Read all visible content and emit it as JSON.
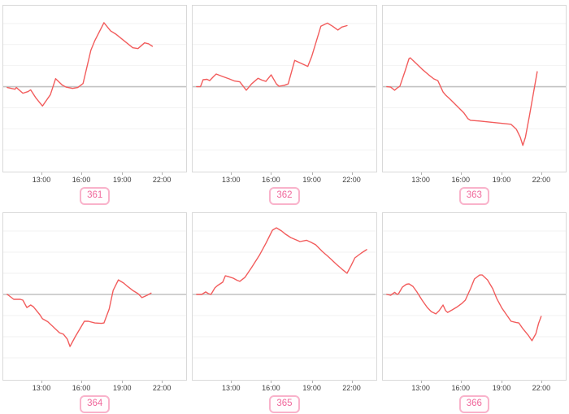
{
  "page": {
    "background": "#ffffff"
  },
  "colors": {
    "line": "#f25c5c",
    "zero_line": "#c2c2c2",
    "gridline": "#f2f2f2",
    "plot_border": "#d9d9d9",
    "badge_border": "#f9b3cb",
    "badge_text": "#f0679b",
    "tick_label": "#404040"
  },
  "chart_data": [
    {
      "type": "line",
      "badge": "361",
      "title_fragment": "· · ·",
      "xlabel": "",
      "ylabel": "",
      "x_ticks": [
        "13:00",
        "16:00",
        "19:00",
        "22:00"
      ],
      "x_range_hours": [
        10,
        24
      ],
      "y_note": "y axis unlabeled; values in gridline units, zero line shown",
      "ylim": [
        -4,
        4
      ],
      "points": [
        [
          10.3,
          -0.04
        ],
        [
          10.9,
          -0.12
        ],
        [
          11.0,
          -0.04
        ],
        [
          11.5,
          -0.31
        ],
        [
          11.9,
          -0.23
        ],
        [
          12.1,
          -0.15
        ],
        [
          12.5,
          -0.54
        ],
        [
          13.0,
          -0.92
        ],
        [
          13.6,
          -0.38
        ],
        [
          14.0,
          0.38
        ],
        [
          14.5,
          0.08
        ],
        [
          14.8,
          -0.02
        ],
        [
          15.3,
          -0.08
        ],
        [
          15.7,
          -0.04
        ],
        [
          16.1,
          0.15
        ],
        [
          16.7,
          1.73
        ],
        [
          17.0,
          2.19
        ],
        [
          17.7,
          3.04
        ],
        [
          18.2,
          2.65
        ],
        [
          18.6,
          2.5
        ],
        [
          19.3,
          2.15
        ],
        [
          19.9,
          1.85
        ],
        [
          20.3,
          1.81
        ],
        [
          20.8,
          2.08
        ],
        [
          21.1,
          2.04
        ],
        [
          21.4,
          1.92
        ]
      ]
    },
    {
      "type": "line",
      "badge": "362",
      "title_fragment": "· · ·",
      "xlabel": "",
      "ylabel": "",
      "x_ticks": [
        "13:00",
        "16:00",
        "19:00",
        "22:00"
      ],
      "x_range_hours": [
        10,
        24
      ],
      "y_note": "y axis unlabeled; values in gridline units, zero line shown",
      "ylim": [
        -4,
        4
      ],
      "points": [
        [
          10.3,
          0
        ],
        [
          10.6,
          0
        ],
        [
          10.8,
          0.33
        ],
        [
          11.1,
          0.35
        ],
        [
          11.3,
          0.29
        ],
        [
          11.6,
          0.48
        ],
        [
          11.8,
          0.6
        ],
        [
          12.3,
          0.48
        ],
        [
          12.8,
          0.37
        ],
        [
          13.2,
          0.27
        ],
        [
          13.6,
          0.23
        ],
        [
          14.1,
          -0.17
        ],
        [
          14.5,
          0.13
        ],
        [
          15.0,
          0.4
        ],
        [
          15.3,
          0.31
        ],
        [
          15.6,
          0.25
        ],
        [
          15.7,
          0.33
        ],
        [
          16.0,
          0.56
        ],
        [
          16.4,
          0.13
        ],
        [
          16.6,
          0.02
        ],
        [
          17.0,
          0.06
        ],
        [
          17.3,
          0.13
        ],
        [
          17.8,
          1.25
        ],
        [
          18.2,
          1.13
        ],
        [
          18.8,
          0.96
        ],
        [
          19.1,
          1.44
        ],
        [
          19.8,
          2.87
        ],
        [
          20.3,
          3.02
        ],
        [
          20.7,
          2.87
        ],
        [
          21.1,
          2.69
        ],
        [
          21.4,
          2.83
        ],
        [
          21.8,
          2.9
        ]
      ]
    },
    {
      "type": "line",
      "badge": "363",
      "title_fragment": "· · ·",
      "xlabel": "",
      "ylabel": "",
      "x_ticks": [
        "13:00",
        "16:00",
        "19:00",
        "22:00"
      ],
      "x_range_hours": [
        10,
        24
      ],
      "y_note": "y axis unlabeled; values in gridline units, zero line shown",
      "ylim": [
        -4,
        4
      ],
      "points": [
        [
          10.3,
          0
        ],
        [
          10.6,
          -0.02
        ],
        [
          10.9,
          -0.17
        ],
        [
          11.1,
          -0.06
        ],
        [
          11.3,
          0.02
        ],
        [
          11.7,
          0.75
        ],
        [
          12.0,
          1.33
        ],
        [
          12.1,
          1.37
        ],
        [
          12.5,
          1.13
        ],
        [
          13.0,
          0.83
        ],
        [
          13.5,
          0.56
        ],
        [
          13.9,
          0.37
        ],
        [
          14.2,
          0.29
        ],
        [
          14.6,
          -0.25
        ],
        [
          14.8,
          -0.4
        ],
        [
          15.2,
          -0.63
        ],
        [
          15.7,
          -0.94
        ],
        [
          16.2,
          -1.25
        ],
        [
          16.5,
          -1.52
        ],
        [
          16.7,
          -1.6
        ],
        [
          17.4,
          -1.63
        ],
        [
          18.3,
          -1.69
        ],
        [
          19.2,
          -1.75
        ],
        [
          19.8,
          -1.79
        ],
        [
          20.2,
          -2.02
        ],
        [
          20.5,
          -2.4
        ],
        [
          20.7,
          -2.79
        ],
        [
          20.9,
          -2.4
        ],
        [
          21.2,
          -1.4
        ],
        [
          21.5,
          -0.33
        ],
        [
          21.8,
          0.71
        ]
      ]
    },
    {
      "type": "line",
      "badge": "364",
      "title_fragment": "· · ·",
      "xlabel": "",
      "ylabel": "",
      "x_ticks": [
        "13:00",
        "16:00",
        "19:00",
        "22:00"
      ],
      "x_range_hours": [
        10,
        24
      ],
      "y_note": "y axis unlabeled; values in gridline units, zero line shown",
      "ylim": [
        -4,
        4
      ],
      "points": [
        [
          10.3,
          0
        ],
        [
          10.4,
          -0.04
        ],
        [
          10.8,
          -0.23
        ],
        [
          11.3,
          -0.23
        ],
        [
          11.5,
          -0.27
        ],
        [
          11.8,
          -0.62
        ],
        [
          12.1,
          -0.5
        ],
        [
          12.3,
          -0.58
        ],
        [
          12.8,
          -0.96
        ],
        [
          13.0,
          -1.15
        ],
        [
          13.4,
          -1.29
        ],
        [
          13.7,
          -1.46
        ],
        [
          14.3,
          -1.81
        ],
        [
          14.6,
          -1.88
        ],
        [
          14.9,
          -2.12
        ],
        [
          15.1,
          -2.46
        ],
        [
          15.5,
          -2.0
        ],
        [
          15.9,
          -1.58
        ],
        [
          16.2,
          -1.27
        ],
        [
          16.5,
          -1.27
        ],
        [
          17.0,
          -1.35
        ],
        [
          17.5,
          -1.37
        ],
        [
          17.7,
          -1.35
        ],
        [
          18.1,
          -0.69
        ],
        [
          18.4,
          0.19
        ],
        [
          18.8,
          0.69
        ],
        [
          19.2,
          0.54
        ],
        [
          19.5,
          0.38
        ],
        [
          19.9,
          0.19
        ],
        [
          20.3,
          0.04
        ],
        [
          20.6,
          -0.15
        ],
        [
          21.0,
          -0.04
        ],
        [
          21.3,
          0.06
        ]
      ]
    },
    {
      "type": "line",
      "badge": "365",
      "title_fragment": "· · ·",
      "xlabel": "",
      "ylabel": "",
      "x_ticks": [
        "13:00",
        "16:00",
        "19:00",
        "22:00"
      ],
      "x_range_hours": [
        10,
        24
      ],
      "y_note": "y axis unlabeled; values in gridline units, zero line shown",
      "ylim": [
        -4,
        4
      ],
      "points": [
        [
          10.3,
          0
        ],
        [
          10.7,
          0
        ],
        [
          10.9,
          0.08
        ],
        [
          11.0,
          0.12
        ],
        [
          11.2,
          0.04
        ],
        [
          11.4,
          0
        ],
        [
          11.7,
          0.31
        ],
        [
          11.9,
          0.42
        ],
        [
          12.3,
          0.58
        ],
        [
          12.5,
          0.88
        ],
        [
          12.7,
          0.85
        ],
        [
          13.1,
          0.77
        ],
        [
          13.4,
          0.67
        ],
        [
          13.6,
          0.62
        ],
        [
          14.0,
          0.81
        ],
        [
          14.5,
          1.27
        ],
        [
          15.1,
          1.85
        ],
        [
          15.6,
          2.42
        ],
        [
          16.1,
          3.04
        ],
        [
          16.4,
          3.15
        ],
        [
          16.8,
          3.0
        ],
        [
          17.1,
          2.85
        ],
        [
          17.5,
          2.69
        ],
        [
          17.9,
          2.58
        ],
        [
          18.2,
          2.5
        ],
        [
          18.7,
          2.56
        ],
        [
          19.0,
          2.48
        ],
        [
          19.4,
          2.35
        ],
        [
          19.9,
          2.04
        ],
        [
          20.4,
          1.77
        ],
        [
          21.0,
          1.42
        ],
        [
          21.5,
          1.15
        ],
        [
          21.8,
          1.0
        ],
        [
          22.1,
          1.35
        ],
        [
          22.4,
          1.73
        ],
        [
          22.9,
          1.96
        ],
        [
          23.3,
          2.12
        ]
      ]
    },
    {
      "type": "line",
      "badge": "366",
      "title_fragment": "· · ·",
      "xlabel": "",
      "ylabel": "",
      "x_ticks": [
        "13:00",
        "16:00",
        "19:00",
        "22:00"
      ],
      "x_range_hours": [
        10,
        24
      ],
      "y_note": "y axis unlabeled; values in gridline units, zero line shown",
      "ylim": [
        -4,
        4
      ],
      "points": [
        [
          10.3,
          0
        ],
        [
          10.6,
          -0.04
        ],
        [
          10.9,
          0.1
        ],
        [
          11.1,
          0
        ],
        [
          11.2,
          0.04
        ],
        [
          11.5,
          0.35
        ],
        [
          11.8,
          0.48
        ],
        [
          12.0,
          0.5
        ],
        [
          12.3,
          0.38
        ],
        [
          12.6,
          0.12
        ],
        [
          13.0,
          -0.27
        ],
        [
          13.4,
          -0.62
        ],
        [
          13.7,
          -0.81
        ],
        [
          14.05,
          -0.92
        ],
        [
          14.3,
          -0.77
        ],
        [
          14.6,
          -0.5
        ],
        [
          14.8,
          -0.77
        ],
        [
          14.95,
          -0.85
        ],
        [
          15.3,
          -0.73
        ],
        [
          15.7,
          -0.58
        ],
        [
          16.05,
          -0.42
        ],
        [
          16.3,
          -0.27
        ],
        [
          16.7,
          0.27
        ],
        [
          17.0,
          0.73
        ],
        [
          17.4,
          0.92
        ],
        [
          17.6,
          0.92
        ],
        [
          18.0,
          0.69
        ],
        [
          18.4,
          0.27
        ],
        [
          18.7,
          -0.19
        ],
        [
          19.1,
          -0.65
        ],
        [
          19.5,
          -1.0
        ],
        [
          19.8,
          -1.27
        ],
        [
          20.2,
          -1.33
        ],
        [
          20.4,
          -1.35
        ],
        [
          20.7,
          -1.62
        ],
        [
          21.1,
          -1.92
        ],
        [
          21.4,
          -2.19
        ],
        [
          21.7,
          -1.85
        ],
        [
          21.9,
          -1.38
        ],
        [
          22.1,
          -1.04
        ]
      ]
    }
  ]
}
